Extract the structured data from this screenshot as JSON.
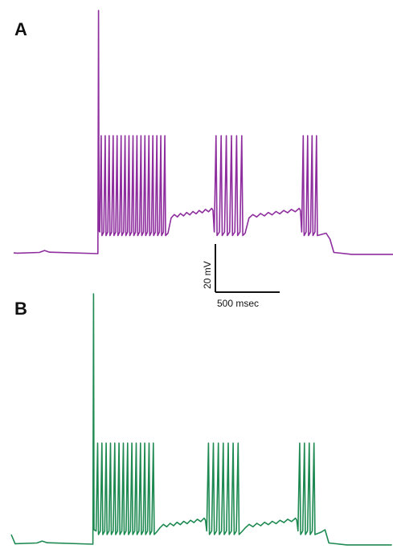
{
  "colors": {
    "trace_a": "#8e2d9e",
    "trace_b": "#1e8a52",
    "scale_bar": "#111111"
  },
  "panels": {
    "a": {
      "label": "A"
    },
    "b": {
      "label": "B"
    }
  },
  "scale_bar": {
    "voltage_label": "20 mV",
    "time_label": "500 msec"
  },
  "chart_data": [
    {
      "type": "line",
      "panel": "A",
      "description_units": {
        "x": "msec",
        "y": "mV"
      },
      "baseline_mV": 0,
      "stimulus_on_ms": 660,
      "stimulus_off_ms": 2430,
      "spike_trough_mV": 7.5,
      "spike_peak_mV": 49,
      "plateau_mV": 15,
      "bursts": [
        {
          "start_ms": 670,
          "end_ms": 1180,
          "spikes": 17
        },
        {
          "start_ms": 1560,
          "end_ms": 1780,
          "spikes": 6
        },
        {
          "start_ms": 2240,
          "end_ms": 2360,
          "spikes": 4
        }
      ]
    },
    {
      "type": "line",
      "panel": "B",
      "description_units": {
        "x": "msec",
        "y": "mV"
      },
      "baseline_mV": 0,
      "stimulus_on_ms": 640,
      "stimulus_off_ms": 2410,
      "spike_trough_mV": 4,
      "spike_peak_mV": 42,
      "plateau_mV": 7,
      "bursts": [
        {
          "start_ms": 660,
          "end_ms": 1110,
          "spikes": 14
        },
        {
          "start_ms": 1520,
          "end_ms": 1770,
          "spikes": 7
        },
        {
          "start_ms": 2230,
          "end_ms": 2360,
          "spikes": 4
        }
      ]
    }
  ]
}
